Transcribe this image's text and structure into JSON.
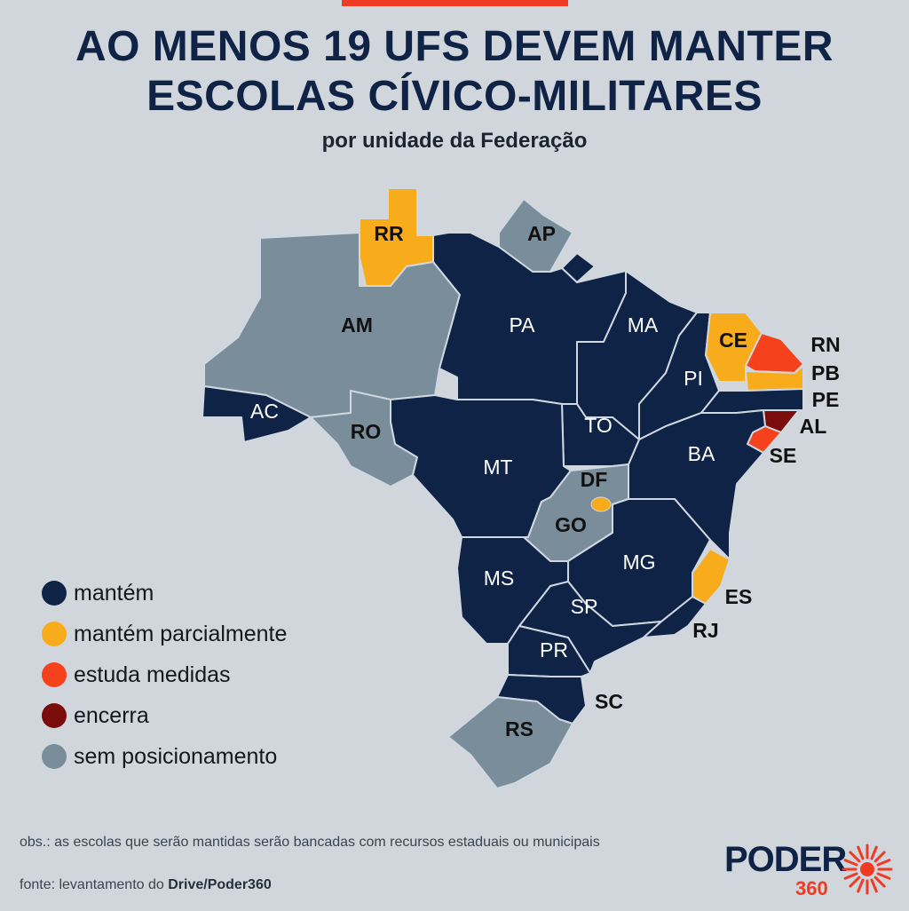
{
  "title": {
    "line1": "AO MENOS 19 UFS DEVEM MANTER",
    "line2": "ESCOLAS CÍVICO-MILITARES"
  },
  "subtitle": "por unidade da Federação",
  "colors": {
    "mantem": "#0e2346",
    "mantem_parcialmente": "#f9ac1b",
    "estuda_medidas": "#f5421c",
    "encerra": "#7a0c0c",
    "sem_posicionamento": "#7a8d9b",
    "background": "#d0d6dc"
  },
  "legend": [
    {
      "key": "mantem",
      "label": "mantém",
      "color": "#0e2346"
    },
    {
      "key": "mantem_parcialmente",
      "label": "mantém parcialmente",
      "color": "#f9ac1b"
    },
    {
      "key": "estuda_medidas",
      "label": "estuda medidas",
      "color": "#f5421c"
    },
    {
      "key": "encerra",
      "label": "encerra",
      "color": "#7a0c0c"
    },
    {
      "key": "sem_posicionamento",
      "label": "sem posicionamento",
      "color": "#7a8d9b"
    }
  ],
  "states": [
    {
      "code": "RR",
      "status": "mantem_parcialmente"
    },
    {
      "code": "AP",
      "status": "sem_posicionamento"
    },
    {
      "code": "AM",
      "status": "sem_posicionamento"
    },
    {
      "code": "PA",
      "status": "mantem"
    },
    {
      "code": "MA",
      "status": "mantem"
    },
    {
      "code": "CE",
      "status": "mantem_parcialmente"
    },
    {
      "code": "RN",
      "status": "estuda_medidas"
    },
    {
      "code": "PB",
      "status": "mantem_parcialmente"
    },
    {
      "code": "PE",
      "status": "mantem"
    },
    {
      "code": "AL",
      "status": "encerra"
    },
    {
      "code": "SE",
      "status": "estuda_medidas"
    },
    {
      "code": "PI",
      "status": "mantem"
    },
    {
      "code": "AC",
      "status": "mantem"
    },
    {
      "code": "RO",
      "status": "sem_posicionamento"
    },
    {
      "code": "TO",
      "status": "mantem"
    },
    {
      "code": "BA",
      "status": "mantem"
    },
    {
      "code": "MT",
      "status": "mantem"
    },
    {
      "code": "DF",
      "status": "mantem_parcialmente"
    },
    {
      "code": "GO",
      "status": "sem_posicionamento"
    },
    {
      "code": "MG",
      "status": "mantem"
    },
    {
      "code": "ES",
      "status": "mantem_parcialmente"
    },
    {
      "code": "MS",
      "status": "mantem"
    },
    {
      "code": "SP",
      "status": "mantem"
    },
    {
      "code": "RJ",
      "status": "mantem"
    },
    {
      "code": "PR",
      "status": "mantem"
    },
    {
      "code": "SC",
      "status": "mantem"
    },
    {
      "code": "RS",
      "status": "sem_posicionamento"
    }
  ],
  "footer": {
    "obs": "obs.: as escolas que serão mantidas serão bancadas com recursos estaduais ou municipais",
    "fonte_prefix": "fonte: levantamento do ",
    "fonte_source": "Drive/Poder360"
  },
  "logo": {
    "name": "PODER",
    "number": "360",
    "icon": "sun-rays-icon"
  }
}
